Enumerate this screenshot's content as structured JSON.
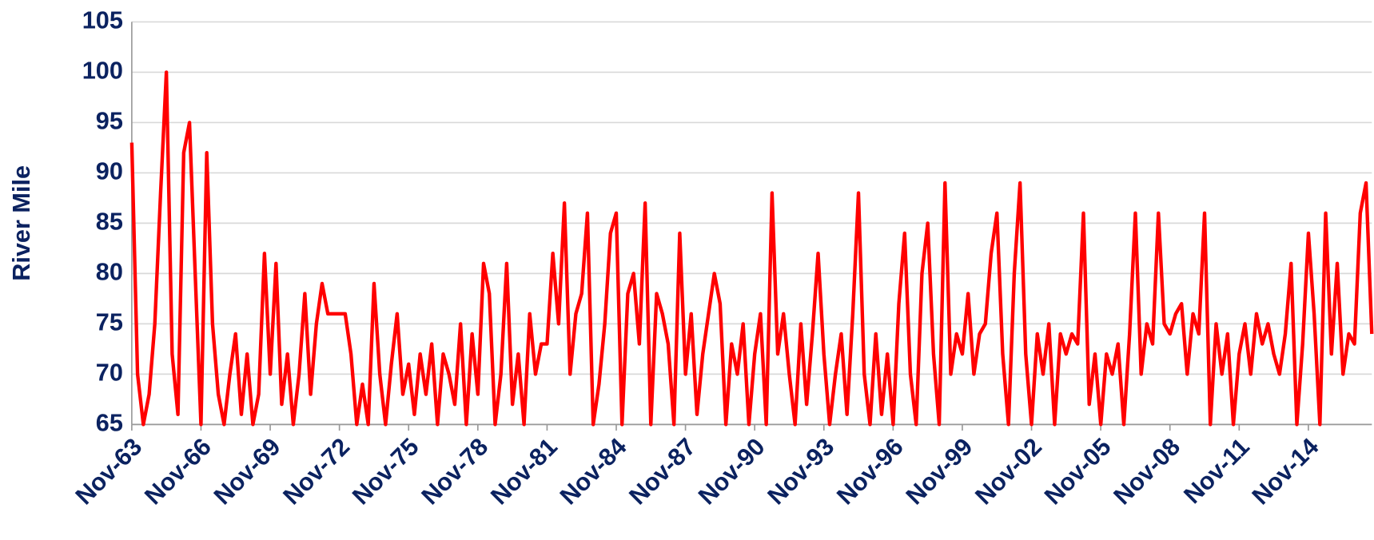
{
  "chart_data": {
    "type": "line",
    "y_label": "River Mile",
    "categories": [
      "Nov-63",
      null,
      null,
      null,
      null,
      null,
      null,
      null,
      null,
      null,
      null,
      null,
      "Nov-66",
      null,
      null,
      null,
      null,
      null,
      null,
      null,
      null,
      null,
      null,
      null,
      "Nov-69",
      null,
      null,
      null,
      null,
      null,
      null,
      null,
      null,
      null,
      null,
      null,
      "Nov-72",
      null,
      null,
      null,
      null,
      null,
      null,
      null,
      null,
      null,
      null,
      null,
      "Nov-75",
      null,
      null,
      null,
      null,
      null,
      null,
      null,
      null,
      null,
      null,
      null,
      "Nov-78",
      null,
      null,
      null,
      null,
      null,
      null,
      null,
      null,
      null,
      null,
      null,
      "Nov-81",
      null,
      null,
      null,
      null,
      null,
      null,
      null,
      null,
      null,
      null,
      null,
      "Nov-84",
      null,
      null,
      null,
      null,
      null,
      null,
      null,
      null,
      null,
      null,
      null,
      "Nov-87",
      null,
      null,
      null,
      null,
      null,
      null,
      null,
      null,
      null,
      null,
      null,
      "Nov-90",
      null,
      null,
      null,
      null,
      null,
      null,
      null,
      null,
      null,
      null,
      null,
      "Nov-93",
      null,
      null,
      null,
      null,
      null,
      null,
      null,
      null,
      null,
      null,
      null,
      "Nov-96",
      null,
      null,
      null,
      null,
      null,
      null,
      null,
      null,
      null,
      null,
      null,
      "Nov-99",
      null,
      null,
      null,
      null,
      null,
      null,
      null,
      null,
      null,
      null,
      null,
      "Nov-02",
      null,
      null,
      null,
      null,
      null,
      null,
      null,
      null,
      null,
      null,
      null,
      "Nov-05",
      null,
      null,
      null,
      null,
      null,
      null,
      null,
      null,
      null,
      null,
      null,
      "Nov-08",
      null,
      null,
      null,
      null,
      null,
      null,
      null,
      null,
      null,
      null,
      null,
      "Nov-11",
      null,
      null,
      null,
      null,
      null,
      null,
      null,
      null,
      null,
      null,
      null,
      "Nov-14",
      null,
      null,
      null,
      null,
      null,
      null,
      null,
      null,
      null,
      null,
      null
    ],
    "series": [
      {
        "name": "River Mile",
        "color": "#ff0000",
        "values": [
          93,
          70,
          65,
          68,
          75,
          88,
          100,
          72,
          66,
          92,
          95,
          80,
          65,
          92,
          75,
          68,
          65,
          70,
          74,
          66,
          72,
          65,
          68,
          82,
          70,
          81,
          67,
          72,
          65,
          70,
          78,
          68,
          75,
          79,
          76,
          76,
          76,
          76,
          72,
          65,
          69,
          65,
          79,
          70,
          65,
          71,
          76,
          68,
          71,
          66,
          72,
          68,
          73,
          65,
          72,
          70,
          67,
          75,
          65,
          74,
          68,
          81,
          78,
          65,
          70,
          81,
          67,
          72,
          65,
          76,
          70,
          73,
          73,
          82,
          75,
          87,
          70,
          76,
          78,
          86,
          65,
          69,
          75,
          84,
          86,
          65,
          78,
          80,
          73,
          87,
          65,
          78,
          76,
          73,
          65,
          84,
          70,
          76,
          66,
          72,
          76,
          80,
          77,
          65,
          73,
          70,
          75,
          65,
          72,
          76,
          65,
          88,
          72,
          76,
          70,
          65,
          75,
          67,
          74,
          82,
          72,
          65,
          70,
          74,
          66,
          76,
          88,
          70,
          65,
          74,
          66,
          72,
          65,
          77,
          84,
          70,
          65,
          80,
          85,
          72,
          65,
          89,
          70,
          74,
          72,
          78,
          70,
          74,
          75,
          82,
          86,
          72,
          65,
          80,
          89,
          72,
          65,
          74,
          70,
          75,
          65,
          74,
          72,
          74,
          73,
          86,
          67,
          72,
          65,
          72,
          70,
          73,
          65,
          74,
          86,
          70,
          75,
          73,
          86,
          75,
          74,
          76,
          77,
          70,
          76,
          74,
          86,
          65,
          75,
          70,
          74,
          65,
          72,
          75,
          70,
          76,
          73,
          75,
          72,
          70,
          74,
          81,
          65,
          73,
          84,
          76,
          65,
          86,
          72,
          81,
          70,
          74,
          73,
          86,
          89,
          74
        ]
      }
    ],
    "ylim": [
      65,
      105
    ],
    "yticks": [
      65,
      70,
      75,
      80,
      85,
      90,
      95,
      100,
      105
    ],
    "grid": true
  }
}
